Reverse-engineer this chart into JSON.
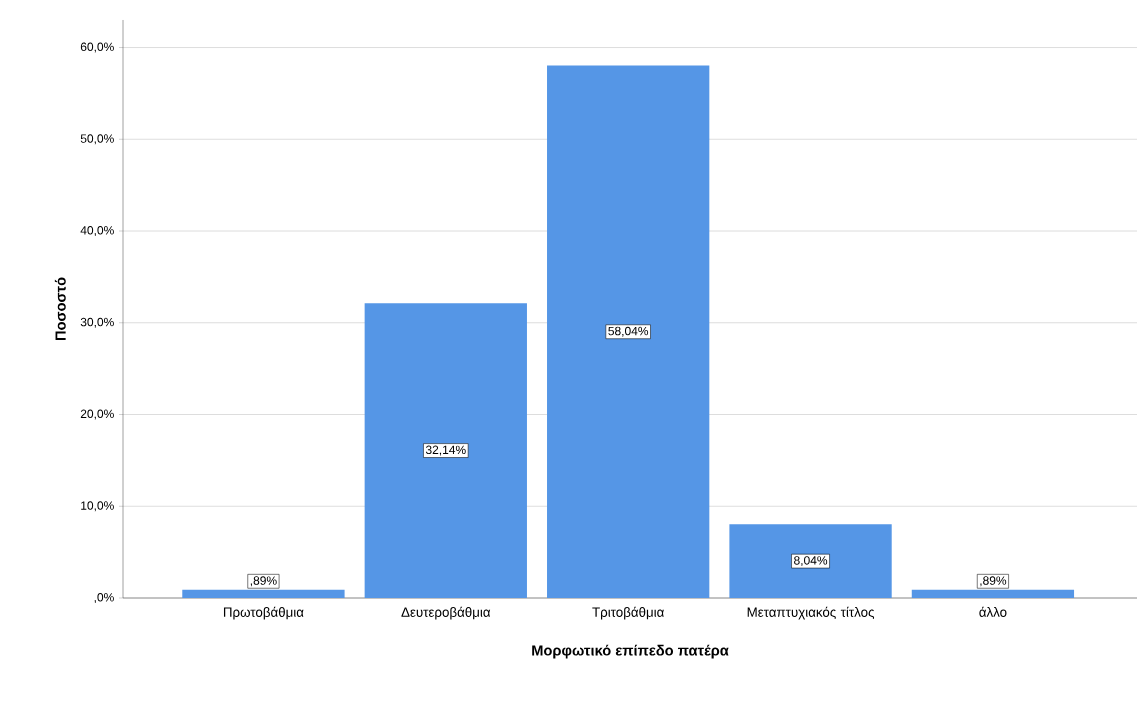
{
  "chart_data": {
    "type": "bar",
    "xlabel": "Μορφωτικό επίπεδο πατέρα",
    "ylabel": "Ποσοστό",
    "categories": [
      "Πρωτοβάθμια",
      "Δευτεροβάθμια",
      "Τριτοβάθμια",
      "Μεταπτυχιακός τίτλος",
      "άλλο"
    ],
    "values": [
      0.89,
      32.14,
      58.04,
      8.04,
      0.89
    ],
    "value_labels": [
      ",89%",
      "32,14%",
      "58,04%",
      "8,04%",
      ",89%"
    ],
    "color": "#5596e6",
    "ylim": [
      0,
      63
    ],
    "yticks": [
      {
        "value": 0,
        "label": ",0%"
      },
      {
        "value": 10,
        "label": "10,0%"
      },
      {
        "value": 20,
        "label": "20,0%"
      },
      {
        "value": 30,
        "label": "30,0%"
      },
      {
        "value": 40,
        "label": "40,0%"
      },
      {
        "value": 50,
        "label": "50,0%"
      },
      {
        "value": 60,
        "label": "60,0%"
      }
    ],
    "grid": "y"
  }
}
